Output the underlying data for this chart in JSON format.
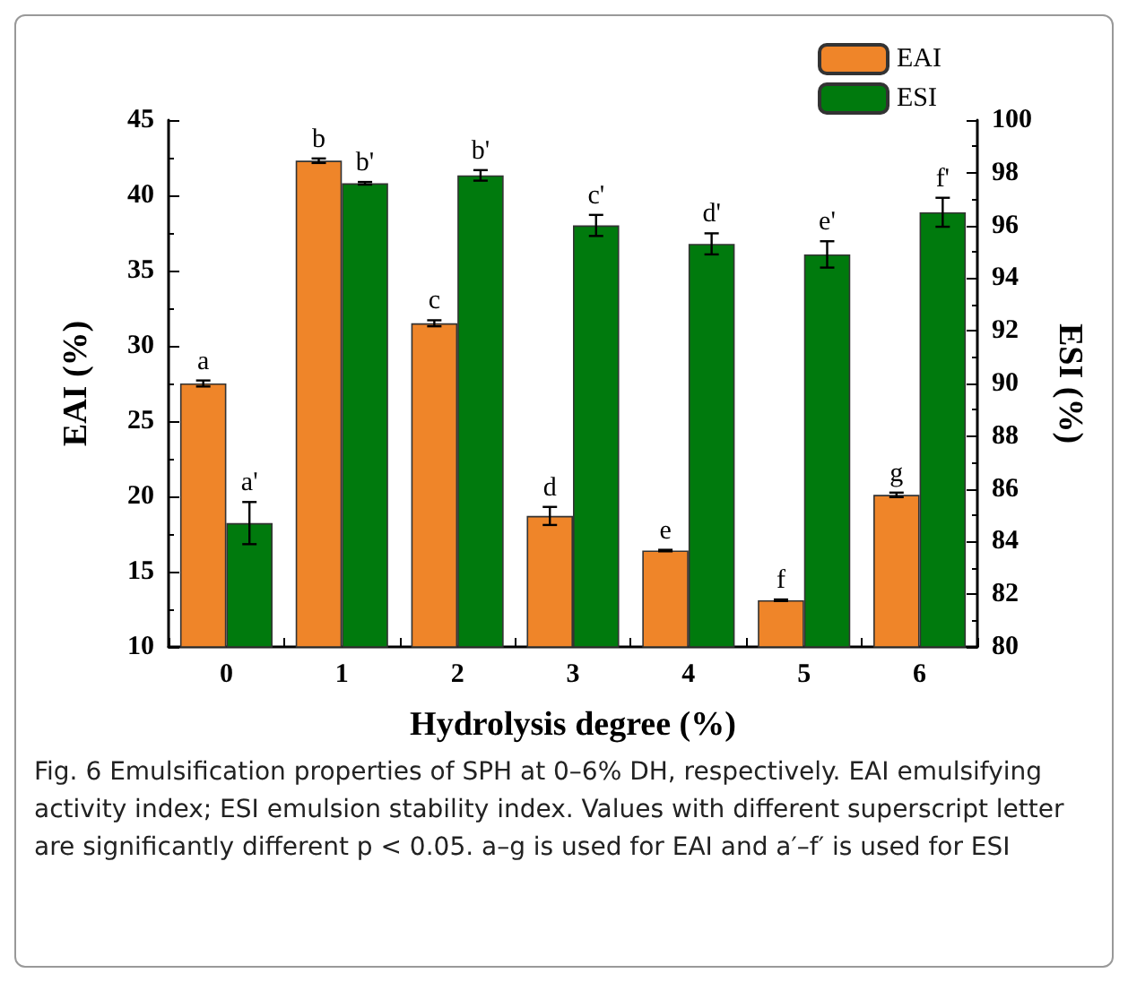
{
  "chart_data": {
    "type": "bar",
    "xlabel": "Hydrolysis degree (%)",
    "ylabel": "EAI (%)",
    "y2label": "ESI (%)",
    "categories": [
      "0",
      "1",
      "2",
      "3",
      "4",
      "5",
      "6"
    ],
    "series": [
      {
        "name": "EAI",
        "color": "#ef8529",
        "values": [
          27.5,
          42.3,
          31.5,
          18.7,
          16.4,
          13.1,
          20.1
        ],
        "errors": [
          0.2,
          0.15,
          0.2,
          0.6,
          0.05,
          0.05,
          0.15
        ],
        "value_labels": [
          "a",
          "b",
          "c",
          "d",
          "e",
          "f",
          "g"
        ]
      },
      {
        "name": "ESI",
        "color": "#007a0d",
        "axis": "y2",
        "values": [
          84.7,
          97.6,
          97.9,
          96.0,
          95.3,
          94.9,
          96.5
        ],
        "errors": [
          0.8,
          0.05,
          0.2,
          0.4,
          0.4,
          0.5,
          0.55
        ],
        "value_labels": [
          "a'",
          "b'",
          "b'",
          "c'",
          "d'",
          "e'",
          "f'"
        ]
      }
    ],
    "ylim": [
      10,
      45
    ],
    "yticks": [
      10,
      15,
      20,
      25,
      30,
      35,
      40,
      45
    ],
    "y2lim": [
      80,
      100
    ],
    "y2ticks": [
      80,
      82,
      84,
      86,
      88,
      90,
      92,
      94,
      96,
      98,
      100
    ],
    "legend": "top right",
    "grid": false,
    "annotations": [
      "Fig. 6  Emulsification properties of SPH at 0–6% DH, respectively. EAI emulsifying activity index; ESI emulsion stability index. Values with different superscript letter are significantly different p < 0.05. a–g is used for EAI and a′–f′ is used for ESI"
    ]
  }
}
